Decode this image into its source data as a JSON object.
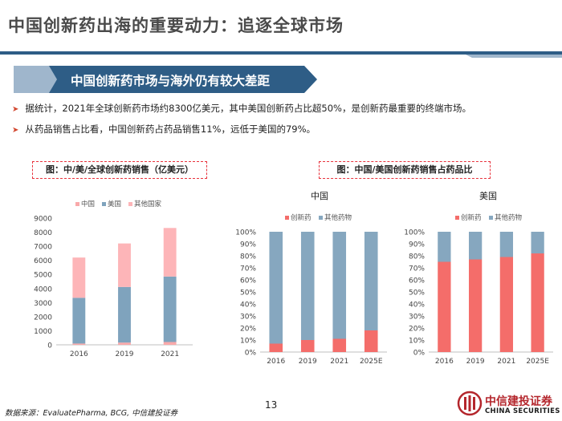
{
  "header": {
    "title": "中国创新药出海的重要动力：追逐全球市场"
  },
  "banner": {
    "text": "中国创新药市场与海外仍有较大差距"
  },
  "bullets": [
    "据统计，2021年全球创新药市场约8300亿美元，其中美国创新药占比超50%，是创新药最重要的终端市场。",
    "从药品销售占比看，中国创新药占药品销售11%，远低于美国的79%。"
  ],
  "figure_labels": {
    "left": "图：中/美/全球创新药销售（亿美元）",
    "right": "图：中国/美国创新药销售占药品比"
  },
  "colors": {
    "china": "#f9a9aa",
    "us": "#7fa3bd",
    "other": "#fdb5b8",
    "innov": "#f46d6a",
    "otherdrug": "#86a7bf",
    "accent": "#2e5d86",
    "red": "#d2462e"
  },
  "chart_data": [
    {
      "type": "bar",
      "stacked": true,
      "categories": [
        "2016",
        "2019",
        "2021"
      ],
      "series": [
        {
          "name": "中国",
          "values": [
            90,
            160,
            200
          ]
        },
        {
          "name": "美国",
          "values": [
            3250,
            3950,
            4650
          ]
        },
        {
          "name": "其他国家",
          "values": [
            2860,
            3090,
            3450
          ]
        }
      ],
      "ylim": [
        0,
        9000
      ],
      "yticks": [
        0,
        1000,
        2000,
        3000,
        4000,
        5000,
        6000,
        7000,
        8000,
        9000
      ],
      "title": "",
      "legend": "top-left"
    },
    {
      "type": "bar",
      "stacked": true,
      "title": "中国",
      "categories": [
        "2016",
        "2019",
        "2021",
        "2025E"
      ],
      "series": [
        {
          "name": "创新药",
          "values": [
            7,
            10,
            11,
            18
          ]
        },
        {
          "name": "其他药物",
          "values": [
            93,
            90,
            89,
            82
          ]
        }
      ],
      "ylim": [
        0,
        100
      ],
      "yticks": [
        "0%",
        "10%",
        "20%",
        "30%",
        "40%",
        "50%",
        "60%",
        "70%",
        "80%",
        "90%",
        "100%"
      ],
      "legend": "top"
    },
    {
      "type": "bar",
      "stacked": true,
      "title": "美国",
      "categories": [
        "2016",
        "2019",
        "2021",
        "2025E"
      ],
      "series": [
        {
          "name": "创新药",
          "values": [
            75,
            77,
            79,
            82
          ]
        },
        {
          "name": "其他药物",
          "values": [
            25,
            23,
            21,
            18
          ]
        }
      ],
      "ylim": [
        0,
        100
      ],
      "yticks": [
        "0%",
        "10%",
        "20%",
        "30%",
        "40%",
        "50%",
        "60%",
        "70%",
        "80%",
        "90%",
        "100%"
      ],
      "legend": "top"
    }
  ],
  "footer": {
    "source": "数据来源：EvaluatePharma, BCG, 中信建投证券",
    "page": "13",
    "logo_cn": "中信建投证券",
    "logo_en": "CHINA SECURITIES"
  }
}
